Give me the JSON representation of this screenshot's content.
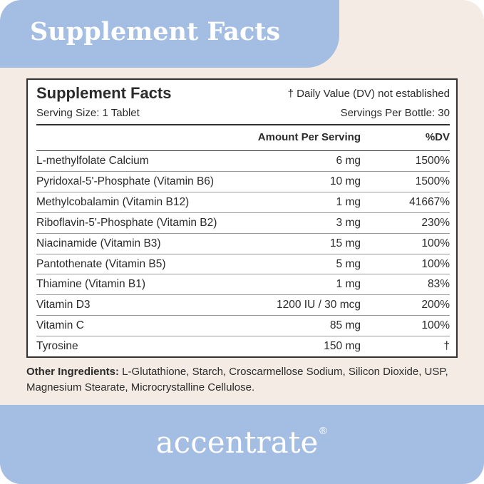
{
  "header": {
    "title": "Supplement Facts"
  },
  "panel": {
    "title": "Supplement Facts",
    "serving_size": "Serving Size: 1 Tablet",
    "dv_note": "† Daily Value (DV) not established",
    "servings_per_bottle": "Servings Per Bottle: 30",
    "columns": [
      "Amount Per Serving",
      "%DV"
    ],
    "rows": [
      [
        "L-methylfolate Calcium",
        "6 mg",
        "1500%"
      ],
      [
        "Pyridoxal-5'-Phosphate (Vitamin B6)",
        "10 mg",
        "1500%"
      ],
      [
        "Methylcobalamin (Vitamin B12)",
        "1 mg",
        "41667%"
      ],
      [
        "Riboflavin-5'-Phosphate (Vitamin B2)",
        "3 mg",
        "230%"
      ],
      [
        "Niacinamide (Vitamin B3)",
        "15 mg",
        "100%"
      ],
      [
        "Pantothenate (Vitamin B5)",
        "5 mg",
        "100%"
      ],
      [
        "Thiamine (Vitamin B1)",
        "1 mg",
        "83%"
      ],
      [
        "Vitamin D3",
        "1200 IU / 30 mcg",
        "200%"
      ],
      [
        "Vitamin C",
        "85 mg",
        "100%"
      ],
      [
        "Tyrosine",
        "150 mg",
        "†"
      ]
    ]
  },
  "other_ingredients": {
    "label": "Other Ingredients:",
    "text": " L-Glutathione, Starch, Croscarmellose Sodium, Silicon Dioxide, USP, Magnesium Stearate, Microcrystalline Cellulose."
  },
  "brand": {
    "name": "accentrate",
    "mark": "®"
  }
}
